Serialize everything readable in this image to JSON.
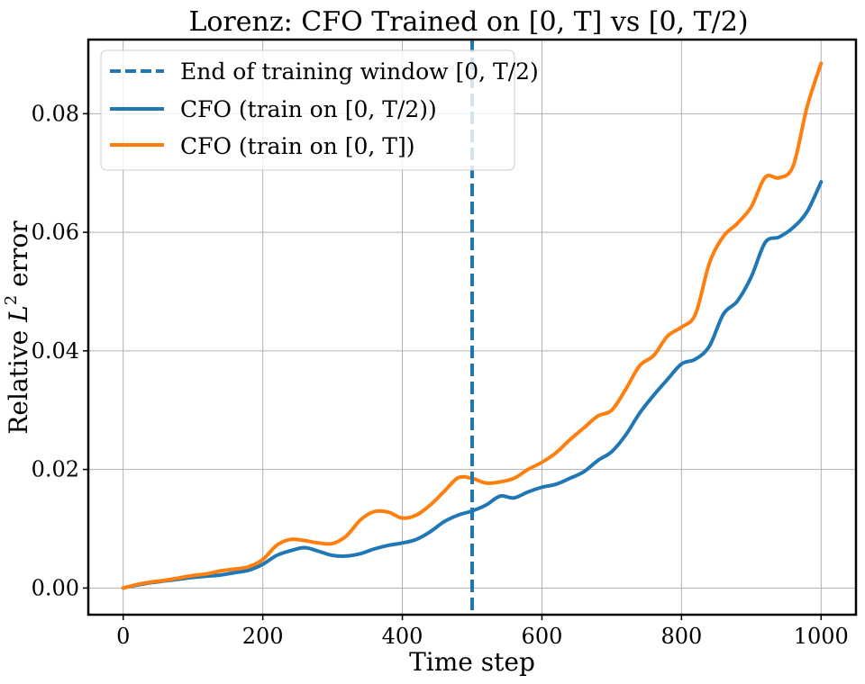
{
  "chart_data": {
    "type": "line",
    "title": "Lorenz: CFO Trained on [0, T] vs [0, T/2)",
    "xlabel": "Time step",
    "ylabel_prefix": "Relative ",
    "ylabel_math": "L",
    "ylabel_sup": "2",
    "ylabel_suffix": " error",
    "xlim": [
      -50,
      1050
    ],
    "ylim": [
      -0.0045,
      0.0925
    ],
    "xticks": [
      0,
      200,
      400,
      600,
      800,
      1000
    ],
    "xtick_labels": [
      "0",
      "200",
      "400",
      "600",
      "800",
      "1000"
    ],
    "yticks": [
      0.0,
      0.02,
      0.04,
      0.06,
      0.08
    ],
    "ytick_labels": [
      "0.00",
      "0.02",
      "0.04",
      "0.06",
      "0.08"
    ],
    "grid": true,
    "legend_position": "top-left",
    "vline": {
      "x": 500,
      "label": "End of training window [0, T/2)",
      "color": "#1f77b4",
      "style": "dashed"
    },
    "series": [
      {
        "name": "CFO (train on [0, T/2))",
        "color": "#1f77b4",
        "x": [
          0,
          20,
          40,
          60,
          80,
          100,
          120,
          140,
          160,
          180,
          200,
          220,
          240,
          260,
          280,
          300,
          320,
          340,
          360,
          380,
          400,
          420,
          440,
          460,
          480,
          500,
          520,
          540,
          560,
          580,
          600,
          620,
          640,
          660,
          680,
          700,
          720,
          740,
          760,
          780,
          800,
          820,
          840,
          860,
          880,
          900,
          920,
          940,
          960,
          980,
          1000
        ],
        "values": [
          0.0,
          0.0005,
          0.0009,
          0.0012,
          0.0015,
          0.0018,
          0.002,
          0.0022,
          0.0026,
          0.003,
          0.004,
          0.0055,
          0.0063,
          0.0068,
          0.0062,
          0.0055,
          0.0054,
          0.0058,
          0.0066,
          0.0072,
          0.0076,
          0.0082,
          0.0095,
          0.0112,
          0.0123,
          0.013,
          0.014,
          0.0155,
          0.0152,
          0.0162,
          0.017,
          0.0175,
          0.0185,
          0.0196,
          0.0215,
          0.023,
          0.0258,
          0.0295,
          0.0325,
          0.0352,
          0.0378,
          0.0386,
          0.0408,
          0.0462,
          0.0484,
          0.0525,
          0.0583,
          0.0592,
          0.0608,
          0.0635,
          0.0685
        ]
      },
      {
        "name": "CFO (train on [0, T])",
        "color": "#ff7f0e",
        "x": [
          0,
          20,
          40,
          60,
          80,
          100,
          120,
          140,
          160,
          180,
          200,
          220,
          240,
          260,
          280,
          300,
          320,
          340,
          360,
          380,
          400,
          420,
          440,
          460,
          480,
          500,
          520,
          540,
          560,
          580,
          600,
          620,
          640,
          660,
          680,
          700,
          720,
          740,
          760,
          780,
          800,
          820,
          840,
          860,
          880,
          900,
          920,
          940,
          960,
          980,
          1000
        ],
        "values": [
          0.0,
          0.0006,
          0.001,
          0.0013,
          0.0017,
          0.0021,
          0.0024,
          0.0029,
          0.0032,
          0.0036,
          0.0048,
          0.0072,
          0.0082,
          0.008,
          0.0076,
          0.0075,
          0.0088,
          0.0115,
          0.0129,
          0.0128,
          0.0118,
          0.0123,
          0.014,
          0.0163,
          0.0186,
          0.0185,
          0.0177,
          0.0179,
          0.0185,
          0.02,
          0.0212,
          0.0228,
          0.025,
          0.027,
          0.029,
          0.03,
          0.0335,
          0.0375,
          0.0392,
          0.0425,
          0.044,
          0.0462,
          0.0548,
          0.0593,
          0.0615,
          0.0643,
          0.0693,
          0.0692,
          0.0712,
          0.0812,
          0.0885
        ]
      }
    ]
  }
}
